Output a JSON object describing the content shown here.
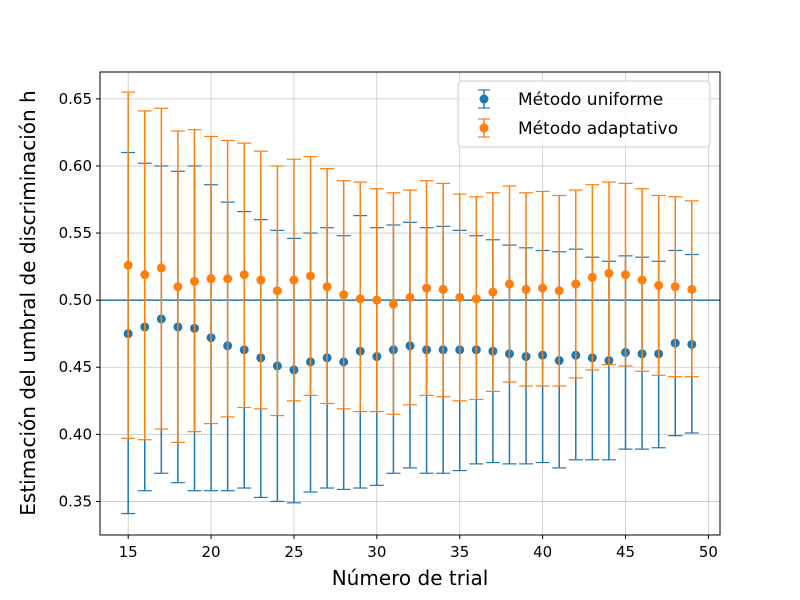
{
  "chart_data": {
    "type": "scatter",
    "title": "",
    "xlabel": "Número de trial",
    "ylabel": "Estimación del umbral de discriminación h",
    "xlim": [
      13.3,
      50.7
    ],
    "ylim": [
      0.325,
      0.67
    ],
    "xticks": [
      15,
      20,
      25,
      30,
      35,
      40,
      45,
      50
    ],
    "yticks": [
      0.35,
      0.4,
      0.45,
      0.5,
      0.55,
      0.6,
      0.65
    ],
    "grid": true,
    "legend_position": "top-right",
    "reference_line": {
      "y": 0.5,
      "color": "#1f77b4"
    },
    "x": [
      15,
      16,
      17,
      18,
      19,
      20,
      21,
      22,
      23,
      24,
      25,
      26,
      27,
      28,
      29,
      30,
      31,
      32,
      33,
      34,
      35,
      36,
      37,
      38,
      39,
      40,
      41,
      42,
      43,
      44,
      45,
      46,
      47,
      48,
      49
    ],
    "series": [
      {
        "name": "Método uniforme",
        "color": "#1f77b4",
        "values": [
          0.475,
          0.48,
          0.486,
          0.48,
          0.479,
          0.472,
          0.466,
          0.463,
          0.457,
          0.451,
          0.448,
          0.454,
          0.457,
          0.454,
          0.462,
          0.458,
          0.463,
          0.466,
          0.463,
          0.463,
          0.463,
          0.463,
          0.462,
          0.46,
          0.458,
          0.459,
          0.455,
          0.459,
          0.457,
          0.455,
          0.461,
          0.46,
          0.46,
          0.468,
          0.467
        ],
        "lower": [
          0.341,
          0.358,
          0.371,
          0.364,
          0.358,
          0.358,
          0.358,
          0.36,
          0.353,
          0.35,
          0.349,
          0.357,
          0.36,
          0.359,
          0.36,
          0.362,
          0.371,
          0.375,
          0.371,
          0.371,
          0.373,
          0.378,
          0.379,
          0.378,
          0.378,
          0.379,
          0.375,
          0.381,
          0.381,
          0.381,
          0.389,
          0.389,
          0.39,
          0.399,
          0.401
        ],
        "upper": [
          0.61,
          0.602,
          0.6,
          0.596,
          0.6,
          0.586,
          0.573,
          0.566,
          0.56,
          0.552,
          0.546,
          0.55,
          0.554,
          0.548,
          0.563,
          0.554,
          0.556,
          0.558,
          0.554,
          0.555,
          0.552,
          0.548,
          0.545,
          0.541,
          0.539,
          0.537,
          0.536,
          0.538,
          0.532,
          0.529,
          0.533,
          0.532,
          0.529,
          0.537,
          0.534
        ]
      },
      {
        "name": "Método adaptativo",
        "color": "#ff7f0e",
        "values": [
          0.526,
          0.519,
          0.524,
          0.51,
          0.514,
          0.516,
          0.516,
          0.519,
          0.515,
          0.507,
          0.515,
          0.518,
          0.51,
          0.504,
          0.501,
          0.5,
          0.497,
          0.502,
          0.509,
          0.508,
          0.502,
          0.501,
          0.506,
          0.512,
          0.508,
          0.509,
          0.507,
          0.512,
          0.517,
          0.52,
          0.519,
          0.515,
          0.511,
          0.51,
          0.508
        ],
        "lower": [
          0.397,
          0.396,
          0.404,
          0.394,
          0.402,
          0.408,
          0.413,
          0.42,
          0.419,
          0.414,
          0.425,
          0.429,
          0.423,
          0.419,
          0.417,
          0.417,
          0.415,
          0.422,
          0.429,
          0.428,
          0.425,
          0.426,
          0.432,
          0.439,
          0.436,
          0.436,
          0.436,
          0.442,
          0.448,
          0.452,
          0.451,
          0.447,
          0.444,
          0.443,
          0.443
        ],
        "upper": [
          0.655,
          0.641,
          0.643,
          0.626,
          0.627,
          0.622,
          0.619,
          0.617,
          0.611,
          0.6,
          0.605,
          0.607,
          0.598,
          0.589,
          0.588,
          0.583,
          0.58,
          0.582,
          0.589,
          0.587,
          0.579,
          0.577,
          0.58,
          0.585,
          0.58,
          0.581,
          0.578,
          0.582,
          0.586,
          0.588,
          0.587,
          0.583,
          0.578,
          0.577,
          0.574
        ]
      }
    ]
  }
}
